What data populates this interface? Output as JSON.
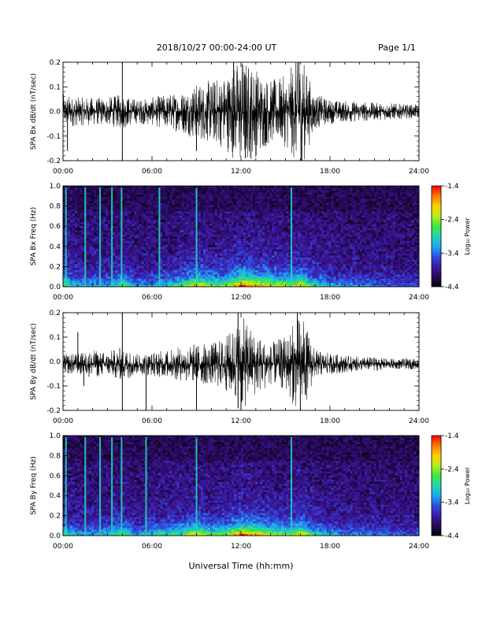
{
  "header": {
    "title": "2018/10/27   00:00-24:00 UT",
    "page": "Page 1/1"
  },
  "xaxis": {
    "ticks": [
      0,
      6,
      12,
      18,
      24
    ],
    "tick_labels": [
      "00:00",
      "06:00",
      "12:00",
      "18:00",
      "24:00"
    ],
    "label": "Universal Time (hh:mm)"
  },
  "colors": {
    "trace": "#000000",
    "colormap": [
      "#000000",
      "#2a0a5c",
      "#3d1aa6",
      "#2f4fe0",
      "#1fa7f0",
      "#22d6b0",
      "#3ee640",
      "#b8ee1c",
      "#ffd000",
      "#ff7a00",
      "#ff0000"
    ]
  },
  "chart_data": [
    {
      "type": "line",
      "ylabel": "SPA Bx dB/dt (nT/sec)",
      "xlim": [
        0,
        24
      ],
      "ylim": [
        -0.2,
        0.2
      ],
      "yticks": [
        -0.2,
        -0.1,
        0.0,
        0.1,
        0.2
      ],
      "ytick_labels": [
        "-0.2",
        "-0.1",
        "0.0",
        "0.1",
        "0.2"
      ],
      "baseline": 0.0,
      "envelope": {
        "x": [
          0,
          1,
          2,
          3,
          4,
          5,
          6,
          7,
          8,
          9,
          10,
          11,
          12,
          13,
          14,
          15,
          16,
          17,
          18,
          19,
          20,
          21,
          22,
          23,
          24
        ],
        "amplitude": [
          0.05,
          0.04,
          0.04,
          0.04,
          0.05,
          0.035,
          0.04,
          0.05,
          0.06,
          0.08,
          0.09,
          0.11,
          0.16,
          0.13,
          0.09,
          0.1,
          0.17,
          0.05,
          0.035,
          0.03,
          0.03,
          0.025,
          0.025,
          0.02,
          0.02
        ]
      },
      "spikes": [
        {
          "x": 0.3,
          "y": -0.16
        },
        {
          "x": 4.0,
          "y": 0.21
        },
        {
          "x": 4.0,
          "y": -0.21
        },
        {
          "x": 9.0,
          "y": -0.16
        },
        {
          "x": 11.5,
          "y": 0.2
        },
        {
          "x": 12.3,
          "y": -0.19
        },
        {
          "x": 15.9,
          "y": 0.2
        },
        {
          "x": 16.1,
          "y": -0.21
        }
      ]
    },
    {
      "type": "heatmap",
      "ylabel": "SPA Bx Freq (Hz)",
      "xlim": [
        0,
        24
      ],
      "ylim": [
        0,
        1.0
      ],
      "yticks": [
        0.0,
        0.2,
        0.4,
        0.6,
        0.8,
        1.0
      ],
      "ytick_labels": [
        "0.0",
        "0.2",
        "0.4",
        "0.6",
        "0.8",
        "1.0"
      ],
      "colorbar": {
        "label": "Log₁₀ Power",
        "range": [
          -4.4,
          -1.4
        ],
        "ticks": [
          -1.4,
          -2.4,
          -3.4,
          -4.4
        ],
        "tick_labels": [
          "-1.4",
          "-2.4",
          "-3.4",
          "-4.4"
        ]
      },
      "activity_by_hour": [
        0.55,
        0.35,
        0.35,
        0.35,
        0.55,
        0.3,
        0.35,
        0.4,
        0.55,
        0.75,
        0.6,
        0.6,
        0.95,
        0.85,
        0.7,
        0.65,
        0.75,
        0.45,
        0.35,
        0.3,
        0.3,
        0.25,
        0.25,
        0.2,
        0.2
      ],
      "vertical_lines": [
        0.2,
        1.5,
        2.5,
        3.3,
        3.95,
        6.5,
        9.0,
        15.4
      ]
    },
    {
      "type": "line",
      "ylabel": "SPA By dB/dt (nT/sec)",
      "xlim": [
        0,
        24
      ],
      "ylim": [
        -0.2,
        0.2
      ],
      "yticks": [
        -0.2,
        -0.1,
        0.0,
        0.1,
        0.2
      ],
      "ytick_labels": [
        "-0.2",
        "-0.1",
        "0.0",
        "0.1",
        "0.2"
      ],
      "baseline": -0.01,
      "envelope": {
        "x": [
          0,
          1,
          2,
          3,
          4,
          5,
          6,
          7,
          8,
          9,
          10,
          11,
          12,
          13,
          14,
          15,
          16,
          17,
          18,
          19,
          20,
          21,
          22,
          23,
          24
        ],
        "amplitude": [
          0.03,
          0.03,
          0.04,
          0.035,
          0.05,
          0.03,
          0.035,
          0.04,
          0.05,
          0.06,
          0.06,
          0.08,
          0.14,
          0.09,
          0.06,
          0.08,
          0.15,
          0.04,
          0.03,
          0.025,
          0.02,
          0.02,
          0.015,
          0.015,
          0.015
        ]
      },
      "spikes": [
        {
          "x": 1.0,
          "y": 0.12
        },
        {
          "x": 1.4,
          "y": -0.1
        },
        {
          "x": 4.0,
          "y": 0.2
        },
        {
          "x": 4.0,
          "y": -0.2
        },
        {
          "x": 5.6,
          "y": -0.2
        },
        {
          "x": 9.0,
          "y": -0.2
        },
        {
          "x": 11.8,
          "y": 0.2
        },
        {
          "x": 12.0,
          "y": -0.2
        },
        {
          "x": 15.8,
          "y": 0.2
        },
        {
          "x": 16.0,
          "y": -0.2
        }
      ]
    },
    {
      "type": "heatmap",
      "ylabel": "SPA By Freq (Hz)",
      "xlim": [
        0,
        24
      ],
      "ylim": [
        0,
        1.0
      ],
      "yticks": [
        0.0,
        0.2,
        0.4,
        0.6,
        0.8,
        1.0
      ],
      "ytick_labels": [
        "0.0",
        "0.2",
        "0.4",
        "0.6",
        "0.8",
        "1.0"
      ],
      "colorbar": {
        "label": "Log₁₀ Power",
        "range": [
          -4.4,
          -1.4
        ],
        "ticks": [
          -1.4,
          -2.4,
          -3.4,
          -4.4
        ],
        "tick_labels": [
          "-1.4",
          "-2.4",
          "-3.4",
          "-4.4"
        ]
      },
      "activity_by_hour": [
        0.5,
        0.35,
        0.35,
        0.4,
        0.55,
        0.3,
        0.45,
        0.45,
        0.55,
        0.75,
        0.55,
        0.6,
        0.9,
        0.8,
        0.65,
        0.6,
        0.75,
        0.45,
        0.35,
        0.3,
        0.3,
        0.25,
        0.25,
        0.2,
        0.2
      ],
      "vertical_lines": [
        0.2,
        1.5,
        2.5,
        3.3,
        3.95,
        5.6,
        9.0,
        15.4
      ]
    }
  ]
}
